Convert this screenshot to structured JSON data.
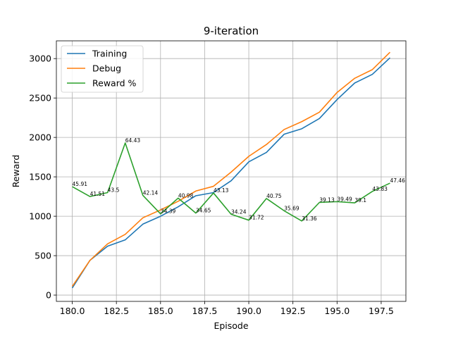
{
  "chart_data": {
    "type": "line",
    "title": "9-iteration",
    "xlabel": "Episode",
    "ylabel": "Reward",
    "xlim": [
      179.1,
      198.9
    ],
    "ylim": [
      -80,
      3225
    ],
    "xticks": [
      180.0,
      182.5,
      185.0,
      187.5,
      190.0,
      192.5,
      195.0,
      197.5
    ],
    "xtick_labels": [
      "180.0",
      "182.5",
      "185.0",
      "187.5",
      "190.0",
      "192.5",
      "195.0",
      "197.5"
    ],
    "yticks": [
      0,
      500,
      1000,
      1500,
      2000,
      2500,
      3000
    ],
    "ytick_labels": [
      "0",
      "500",
      "1000",
      "1500",
      "2000",
      "2500",
      "3000"
    ],
    "grid": true,
    "legend_position": "upper-left",
    "x": [
      180,
      181,
      182,
      183,
      184,
      185,
      186,
      187,
      188,
      189,
      190,
      191,
      192,
      193,
      194,
      195,
      196,
      197,
      198
    ],
    "series": [
      {
        "name": "Training",
        "color": "#1f77b4",
        "values": [
          90,
          440,
          620,
          700,
          900,
          1000,
          1120,
          1260,
          1300,
          1450,
          1690,
          1810,
          2040,
          2110,
          2240,
          2480,
          2690,
          2800,
          3010
        ]
      },
      {
        "name": "Debug",
        "color": "#ff7f0e",
        "values": [
          110,
          440,
          650,
          770,
          980,
          1080,
          1190,
          1320,
          1380,
          1560,
          1760,
          1910,
          2100,
          2200,
          2320,
          2570,
          2750,
          2860,
          3080
        ]
      },
      {
        "name": "Reward %",
        "color": "#2ca02c",
        "values": [
          1375,
          1250,
          1300,
          1930,
          1265,
          1030,
          1230,
          1040,
          1295,
          1025,
          950,
          1225,
          1070,
          940,
          1175,
          1185,
          1170,
          1315,
          1420
        ],
        "annotations": [
          "45.91",
          "41.51",
          "43.5",
          "64.43",
          "42.14",
          "34.39",
          "40.98",
          "34.65",
          "43.13",
          "34.24",
          "31.72",
          "40.75",
          "35.69",
          "31.36",
          "39.13",
          "39.49",
          "39.1",
          "43.83",
          "47.46"
        ]
      }
    ]
  }
}
